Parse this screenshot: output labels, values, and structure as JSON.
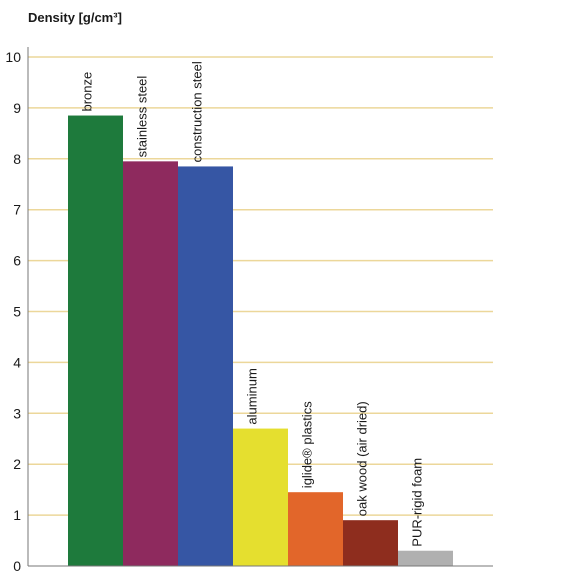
{
  "chart_data": {
    "type": "bar",
    "ylabel": "Density [g/cm³]",
    "ylim": [
      0,
      10
    ],
    "yticks": [
      0,
      1,
      2,
      3,
      4,
      5,
      6,
      7,
      8,
      9,
      10
    ],
    "grid": true,
    "categories": [
      "bronze",
      "stainless steel",
      "construction steel",
      "aluminum",
      "iglide® plastics",
      "oak wood (air dried)",
      "PUR-rigid foam"
    ],
    "values": [
      8.85,
      7.95,
      7.85,
      2.7,
      1.45,
      0.9,
      0.3
    ],
    "colors": [
      "#1e7a3c",
      "#8e2a5e",
      "#3656a4",
      "#e5df2f",
      "#e2662a",
      "#8e2d1e",
      "#b0b0b0"
    ],
    "grid_color": "#ecd79a",
    "axis_color": "#777777"
  }
}
